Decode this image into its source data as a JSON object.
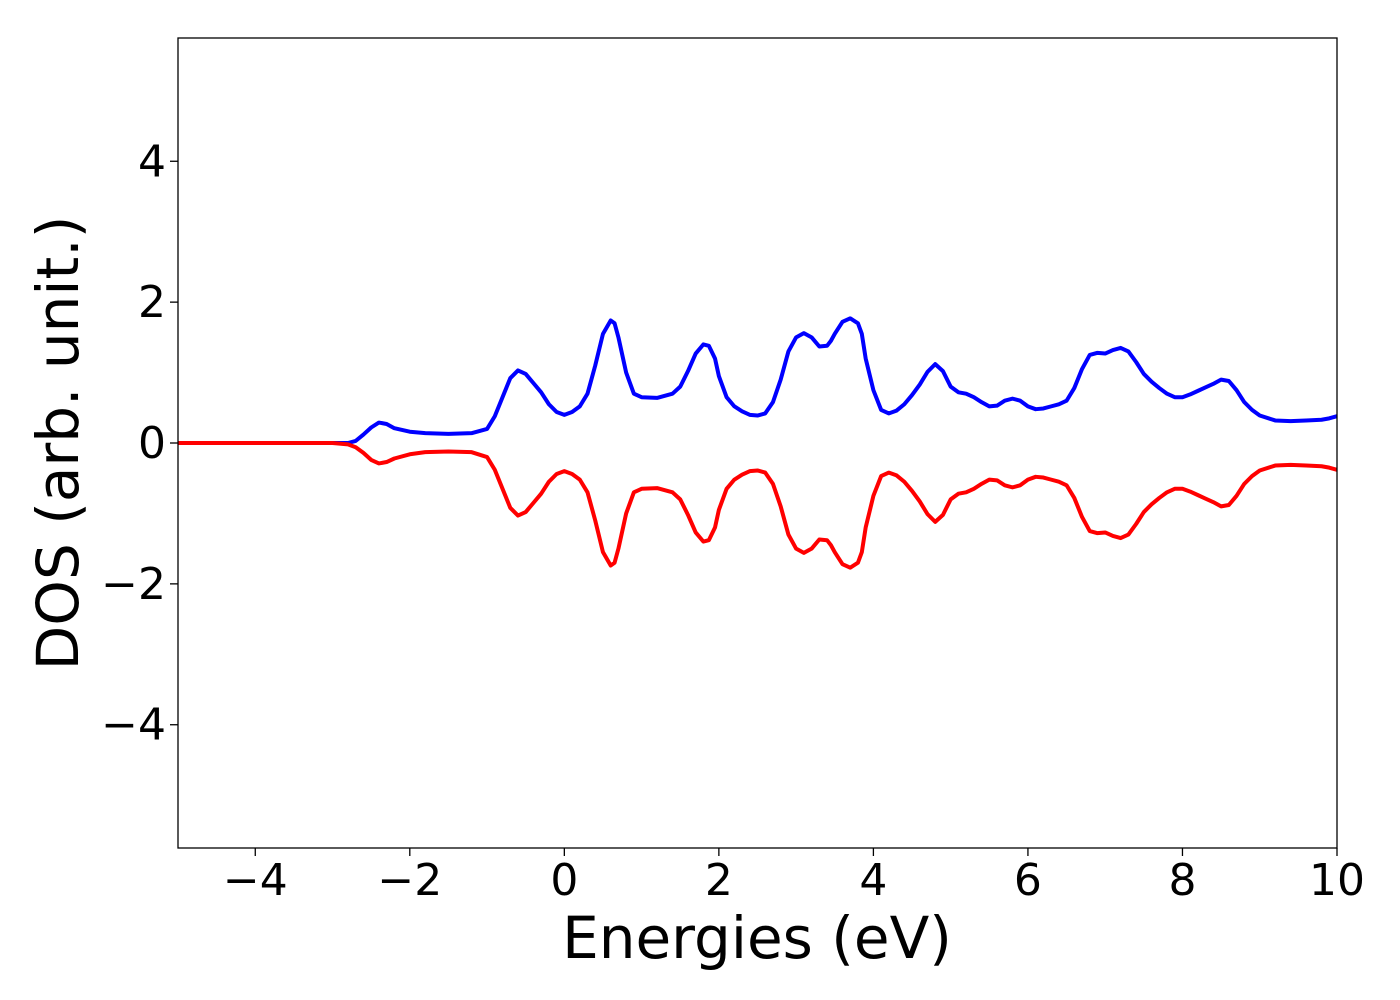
{
  "chart_data": {
    "type": "line",
    "title": "",
    "xlabel": "Energies (eV)",
    "ylabel": "DOS (arb. unit.)",
    "xlim": [
      -5,
      10
    ],
    "ylim": [
      -5.75,
      5.75
    ],
    "xticks": [
      {
        "value": -4,
        "label": "−4"
      },
      {
        "value": -2,
        "label": "−2"
      },
      {
        "value": 0,
        "label": "0"
      },
      {
        "value": 2,
        "label": "2"
      },
      {
        "value": 4,
        "label": "4"
      },
      {
        "value": 6,
        "label": "6"
      },
      {
        "value": 8,
        "label": "8"
      },
      {
        "value": 10,
        "label": "10"
      }
    ],
    "yticks": [
      {
        "value": -4,
        "label": "−4"
      },
      {
        "value": -2,
        "label": "−2"
      },
      {
        "value": 0,
        "label": "0"
      },
      {
        "value": 2,
        "label": "2"
      },
      {
        "value": 4,
        "label": "4"
      }
    ],
    "grid": false,
    "legend": "none",
    "series": [
      {
        "color": "#0000ff",
        "x": [
          -5.0,
          -3.0,
          -2.8,
          -2.7,
          -2.6,
          -2.5,
          -2.4,
          -2.3,
          -2.2,
          -2.0,
          -1.8,
          -1.5,
          -1.2,
          -1.0,
          -0.9,
          -0.8,
          -0.7,
          -0.6,
          -0.5,
          -0.4,
          -0.3,
          -0.2,
          -0.1,
          0.0,
          0.1,
          0.2,
          0.3,
          0.4,
          0.5,
          0.6,
          0.65,
          0.7,
          0.8,
          0.9,
          1.0,
          1.2,
          1.4,
          1.5,
          1.6,
          1.7,
          1.8,
          1.87,
          1.95,
          2.0,
          2.1,
          2.2,
          2.3,
          2.4,
          2.5,
          2.6,
          2.7,
          2.8,
          2.9,
          3.0,
          3.1,
          3.2,
          3.3,
          3.4,
          3.45,
          3.5,
          3.6,
          3.7,
          3.8,
          3.85,
          3.9,
          4.0,
          4.1,
          4.2,
          4.3,
          4.4,
          4.5,
          4.6,
          4.7,
          4.8,
          4.9,
          5.0,
          5.1,
          5.2,
          5.3,
          5.4,
          5.5,
          5.6,
          5.7,
          5.8,
          5.9,
          6.0,
          6.1,
          6.2,
          6.3,
          6.4,
          6.5,
          6.6,
          6.7,
          6.8,
          6.9,
          7.0,
          7.1,
          7.2,
          7.3,
          7.4,
          7.5,
          7.6,
          7.7,
          7.8,
          7.9,
          8.0,
          8.1,
          8.2,
          8.3,
          8.4,
          8.5,
          8.6,
          8.7,
          8.8,
          8.9,
          9.0,
          9.2,
          9.4,
          9.6,
          9.8,
          9.9,
          10.0
        ],
        "y": [
          0.0,
          0.0,
          0.0,
          0.03,
          0.12,
          0.22,
          0.29,
          0.27,
          0.21,
          0.16,
          0.14,
          0.13,
          0.14,
          0.2,
          0.38,
          0.65,
          0.92,
          1.03,
          0.98,
          0.85,
          0.72,
          0.55,
          0.44,
          0.4,
          0.44,
          0.52,
          0.7,
          1.1,
          1.55,
          1.74,
          1.7,
          1.5,
          1.0,
          0.7,
          0.65,
          0.64,
          0.7,
          0.8,
          1.02,
          1.27,
          1.4,
          1.38,
          1.2,
          0.95,
          0.65,
          0.52,
          0.45,
          0.4,
          0.39,
          0.42,
          0.58,
          0.9,
          1.3,
          1.5,
          1.56,
          1.5,
          1.37,
          1.38,
          1.45,
          1.55,
          1.72,
          1.77,
          1.7,
          1.55,
          1.2,
          0.75,
          0.47,
          0.42,
          0.46,
          0.55,
          0.68,
          0.83,
          1.01,
          1.12,
          1.02,
          0.8,
          0.72,
          0.7,
          0.65,
          0.58,
          0.52,
          0.53,
          0.6,
          0.63,
          0.6,
          0.52,
          0.48,
          0.49,
          0.52,
          0.55,
          0.6,
          0.78,
          1.05,
          1.25,
          1.28,
          1.27,
          1.32,
          1.35,
          1.3,
          1.15,
          0.98,
          0.87,
          0.78,
          0.7,
          0.65,
          0.65,
          0.69,
          0.74,
          0.79,
          0.84,
          0.9,
          0.88,
          0.75,
          0.58,
          0.47,
          0.39,
          0.32,
          0.31,
          0.32,
          0.33,
          0.35,
          0.38
        ]
      },
      {
        "color": "#ff0000",
        "x": [
          -5.0,
          -3.0,
          -2.8,
          -2.7,
          -2.6,
          -2.5,
          -2.4,
          -2.3,
          -2.2,
          -2.0,
          -1.8,
          -1.5,
          -1.2,
          -1.0,
          -0.9,
          -0.8,
          -0.7,
          -0.6,
          -0.5,
          -0.4,
          -0.3,
          -0.2,
          -0.1,
          0.0,
          0.1,
          0.2,
          0.3,
          0.4,
          0.5,
          0.6,
          0.65,
          0.7,
          0.8,
          0.9,
          1.0,
          1.2,
          1.4,
          1.5,
          1.6,
          1.7,
          1.8,
          1.87,
          1.95,
          2.0,
          2.1,
          2.2,
          2.3,
          2.4,
          2.5,
          2.6,
          2.7,
          2.8,
          2.9,
          3.0,
          3.1,
          3.2,
          3.3,
          3.4,
          3.45,
          3.5,
          3.6,
          3.7,
          3.8,
          3.85,
          3.9,
          4.0,
          4.1,
          4.2,
          4.3,
          4.4,
          4.5,
          4.6,
          4.7,
          4.8,
          4.9,
          5.0,
          5.1,
          5.2,
          5.3,
          5.4,
          5.5,
          5.6,
          5.7,
          5.8,
          5.9,
          6.0,
          6.1,
          6.2,
          6.3,
          6.4,
          6.5,
          6.6,
          6.7,
          6.8,
          6.9,
          7.0,
          7.1,
          7.2,
          7.3,
          7.4,
          7.5,
          7.6,
          7.7,
          7.8,
          7.9,
          8.0,
          8.1,
          8.2,
          8.3,
          8.4,
          8.5,
          8.6,
          8.7,
          8.8,
          8.9,
          9.0,
          9.2,
          9.4,
          9.6,
          9.8,
          9.9,
          10.0
        ],
        "y": [
          0.0,
          0.0,
          -0.02,
          -0.06,
          -0.14,
          -0.24,
          -0.29,
          -0.27,
          -0.22,
          -0.16,
          -0.13,
          -0.12,
          -0.13,
          -0.2,
          -0.38,
          -0.65,
          -0.92,
          -1.03,
          -0.98,
          -0.85,
          -0.72,
          -0.55,
          -0.44,
          -0.4,
          -0.44,
          -0.52,
          -0.7,
          -1.1,
          -1.55,
          -1.74,
          -1.7,
          -1.5,
          -1.0,
          -0.7,
          -0.65,
          -0.64,
          -0.7,
          -0.8,
          -1.02,
          -1.27,
          -1.4,
          -1.38,
          -1.2,
          -0.95,
          -0.65,
          -0.52,
          -0.45,
          -0.4,
          -0.39,
          -0.42,
          -0.58,
          -0.9,
          -1.3,
          -1.5,
          -1.56,
          -1.5,
          -1.37,
          -1.38,
          -1.45,
          -1.55,
          -1.72,
          -1.77,
          -1.7,
          -1.55,
          -1.2,
          -0.75,
          -0.47,
          -0.42,
          -0.46,
          -0.55,
          -0.68,
          -0.83,
          -1.01,
          -1.12,
          -1.02,
          -0.8,
          -0.72,
          -0.7,
          -0.65,
          -0.58,
          -0.52,
          -0.53,
          -0.6,
          -0.63,
          -0.6,
          -0.52,
          -0.48,
          -0.49,
          -0.52,
          -0.55,
          -0.6,
          -0.78,
          -1.05,
          -1.25,
          -1.28,
          -1.27,
          -1.32,
          -1.35,
          -1.3,
          -1.15,
          -0.98,
          -0.87,
          -0.78,
          -0.7,
          -0.65,
          -0.65,
          -0.69,
          -0.74,
          -0.79,
          -0.84,
          -0.9,
          -0.88,
          -0.75,
          -0.58,
          -0.47,
          -0.39,
          -0.32,
          -0.31,
          -0.32,
          -0.33,
          -0.35,
          -0.38
        ]
      }
    ]
  }
}
